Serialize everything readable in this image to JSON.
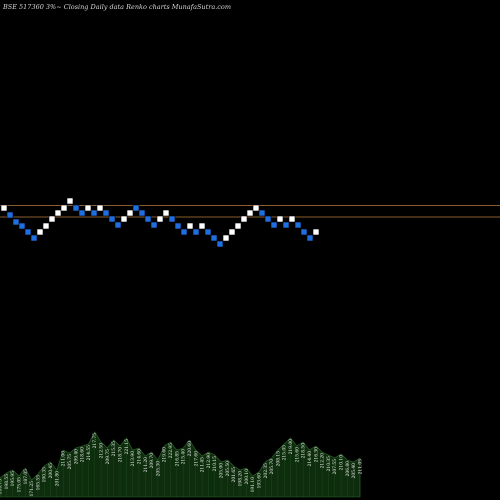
{
  "chart_data": {
    "type": "renko",
    "title": "BSE 517360  3%~  Closing Daily data  Renko  charts MunafaSutra.com",
    "colors": {
      "background": "#000000",
      "up_brick": "#ffffff",
      "down_brick": "#1f6fe0",
      "brick_border": "#000000",
      "reference_line": "#b87a3c",
      "volume_fill": "#0d2d0d",
      "volume_stroke": "#2f6a2f"
    },
    "reference_lines": [
      {
        "name": "upper",
        "level": 205.5
      },
      {
        "name": "lower",
        "level": 217.0
      }
    ],
    "y_scale": {
      "top_value": 0,
      "bottom_value": 500
    },
    "bricks": [
      {
        "dir": "up",
        "level": 208
      },
      {
        "dir": "down",
        "level": 215
      },
      {
        "dir": "down",
        "level": 222
      },
      {
        "dir": "down",
        "level": 226
      },
      {
        "dir": "down",
        "level": 232
      },
      {
        "dir": "down",
        "level": 238
      },
      {
        "dir": "up",
        "level": 232
      },
      {
        "dir": "up",
        "level": 226
      },
      {
        "dir": "up",
        "level": 219
      },
      {
        "dir": "up",
        "level": 213
      },
      {
        "dir": "up",
        "level": 208
      },
      {
        "dir": "up",
        "level": 201
      },
      {
        "dir": "down",
        "level": 208
      },
      {
        "dir": "down",
        "level": 213
      },
      {
        "dir": "up",
        "level": 208
      },
      {
        "dir": "down",
        "level": 213
      },
      {
        "dir": "up",
        "level": 208
      },
      {
        "dir": "down",
        "level": 213
      },
      {
        "dir": "down",
        "level": 219
      },
      {
        "dir": "down",
        "level": 225
      },
      {
        "dir": "up",
        "level": 219
      },
      {
        "dir": "up",
        "level": 213
      },
      {
        "dir": "down",
        "level": 208
      },
      {
        "dir": "down",
        "level": 213
      },
      {
        "dir": "down",
        "level": 219
      },
      {
        "dir": "down",
        "level": 225
      },
      {
        "dir": "up",
        "level": 219
      },
      {
        "dir": "up",
        "level": 213
      },
      {
        "dir": "down",
        "level": 219
      },
      {
        "dir": "down",
        "level": 226
      },
      {
        "dir": "down",
        "level": 232
      },
      {
        "dir": "up",
        "level": 226
      },
      {
        "dir": "down",
        "level": 232
      },
      {
        "dir": "up",
        "level": 226
      },
      {
        "dir": "down",
        "level": 232
      },
      {
        "dir": "down",
        "level": 238
      },
      {
        "dir": "down",
        "level": 244
      },
      {
        "dir": "up",
        "level": 238
      },
      {
        "dir": "up",
        "level": 232
      },
      {
        "dir": "up",
        "level": 226
      },
      {
        "dir": "up",
        "level": 219
      },
      {
        "dir": "up",
        "level": 213
      },
      {
        "dir": "up",
        "level": 208
      },
      {
        "dir": "down",
        "level": 213
      },
      {
        "dir": "down",
        "level": 219
      },
      {
        "dir": "down",
        "level": 225
      },
      {
        "dir": "up",
        "level": 219
      },
      {
        "dir": "down",
        "level": 225
      },
      {
        "dir": "up",
        "level": 219
      },
      {
        "dir": "down",
        "level": 225
      },
      {
        "dir": "down",
        "level": 232
      },
      {
        "dir": "down",
        "level": 238
      },
      {
        "dir": "up",
        "level": 232
      }
    ],
    "volume": {
      "baseline": 497,
      "bars": [
        {
          "top": 478,
          "label": "199.75"
        },
        {
          "top": 473,
          "label": "198.55"
        },
        {
          "top": 470,
          "label": "195.95"
        },
        {
          "top": 476,
          "label": "175.05"
        },
        {
          "top": 468,
          "label": "187.05"
        },
        {
          "top": 480,
          "label": "171.25"
        },
        {
          "top": 474,
          "label": "165.55"
        },
        {
          "top": 466,
          "label": "190.35"
        },
        {
          "top": 462,
          "label": "200.45"
        },
        {
          "top": 470,
          "label": "201.80"
        },
        {
          "top": 450,
          "label": "211.00"
        },
        {
          "top": 453,
          "label": "205.75"
        },
        {
          "top": 448,
          "label": "209.40"
        },
        {
          "top": 446,
          "label": "218.60"
        },
        {
          "top": 444,
          "label": "214.55"
        },
        {
          "top": 432,
          "label": "217.75"
        },
        {
          "top": 442,
          "label": "212.50"
        },
        {
          "top": 448,
          "label": "209.75"
        },
        {
          "top": 440,
          "label": "215.35"
        },
        {
          "top": 446,
          "label": "218.70"
        },
        {
          "top": 438,
          "label": "221.15"
        },
        {
          "top": 450,
          "label": "213.90"
        },
        {
          "top": 448,
          "label": "214.60"
        },
        {
          "top": 456,
          "label": "211.20"
        },
        {
          "top": 452,
          "label": "209.70"
        },
        {
          "top": 460,
          "label": "205.30"
        },
        {
          "top": 446,
          "label": "219.60"
        },
        {
          "top": 442,
          "label": "222.95"
        },
        {
          "top": 450,
          "label": "216.85"
        },
        {
          "top": 448,
          "label": "215.40"
        },
        {
          "top": 440,
          "label": "220.60"
        },
        {
          "top": 450,
          "label": "217.60"
        },
        {
          "top": 456,
          "label": "211.45"
        },
        {
          "top": 452,
          "label": "212.90"
        },
        {
          "top": 455,
          "label": "210.15"
        },
        {
          "top": 462,
          "label": "205.90"
        },
        {
          "top": 460,
          "label": "205.50"
        },
        {
          "top": 466,
          "label": "201.65"
        },
        {
          "top": 470,
          "label": "198.20"
        },
        {
          "top": 468,
          "label": "200.10"
        },
        {
          "top": 476,
          "label": "191.10"
        },
        {
          "top": 472,
          "label": "193.60"
        },
        {
          "top": 462,
          "label": "202.35"
        },
        {
          "top": 458,
          "label": "205.70"
        },
        {
          "top": 450,
          "label": "208.15"
        },
        {
          "top": 444,
          "label": "215.05"
        },
        {
          "top": 438,
          "label": "219.00"
        },
        {
          "top": 446,
          "label": "215.60"
        },
        {
          "top": 442,
          "label": "218.50"
        },
        {
          "top": 450,
          "label": "214.40"
        },
        {
          "top": 446,
          "label": "216.30"
        },
        {
          "top": 452,
          "label": "212.20"
        },
        {
          "top": 455,
          "label": "210.35"
        },
        {
          "top": 458,
          "label": "207.55"
        },
        {
          "top": 454,
          "label": "210.10"
        },
        {
          "top": 460,
          "label": "206.80"
        },
        {
          "top": 462,
          "label": "205.40"
        },
        {
          "top": 458,
          "label": "211.05"
        }
      ]
    }
  }
}
